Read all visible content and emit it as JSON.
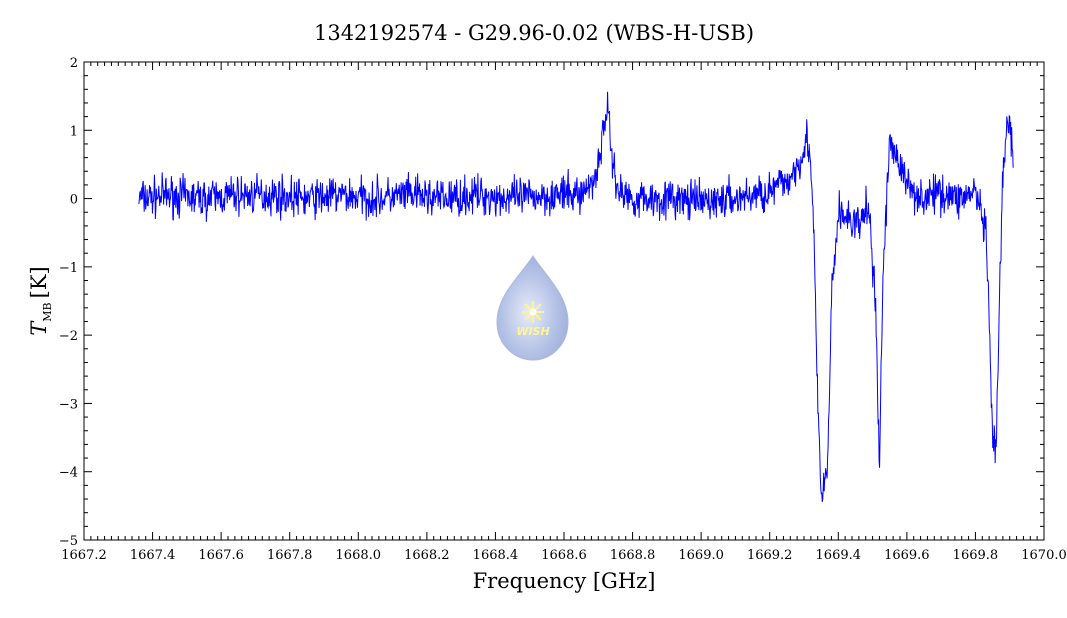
{
  "chart_data": {
    "type": "line",
    "title": "1342192574 - G29.96-0.02 (WBS-H-USB)",
    "xlabel": "Frequency [GHz]",
    "ylabel_main": "T",
    "ylabel_sub": "MB",
    "ylabel_unit": "[K]",
    "xlim": [
      1667.2,
      1670.0
    ],
    "ylim": [
      -5,
      2
    ],
    "xticks": [
      1667.2,
      1667.4,
      1667.6,
      1667.8,
      1668.0,
      1668.2,
      1668.4,
      1668.6,
      1668.8,
      1669.0,
      1669.2,
      1669.4,
      1669.6,
      1669.8,
      1670.0
    ],
    "xtick_labels": [
      "1667.2",
      "1667.4",
      "1667.6",
      "1667.8",
      "1668.0",
      "1668.2",
      "1668.4",
      "1668.6",
      "1668.8",
      "1669.0",
      "1669.2",
      "1669.4",
      "1669.6",
      "1669.8",
      "1670.0"
    ],
    "yticks": [
      2,
      1,
      0,
      -1,
      -2,
      -3,
      -4,
      -5
    ],
    "ytick_labels": [
      "2",
      "1",
      "0",
      "−1",
      "−2",
      "−3",
      "−4",
      "−5"
    ],
    "grid": false,
    "line_color": "#0000ff",
    "series": [
      {
        "x": [
          1667.36,
          1667.45,
          1667.55,
          1667.65,
          1667.75,
          1667.85,
          1667.95,
          1668.05,
          1668.15,
          1668.25,
          1668.35,
          1668.45,
          1668.55,
          1668.62,
          1668.66,
          1668.69,
          1668.71,
          1668.725,
          1668.74,
          1668.76,
          1668.8,
          1668.9,
          1669.0,
          1669.1,
          1669.2,
          1669.26,
          1669.29,
          1669.31,
          1669.32,
          1669.33,
          1669.34,
          1669.35,
          1669.36,
          1669.37,
          1669.38,
          1669.4,
          1669.43,
          1669.46,
          1669.49,
          1669.51,
          1669.52,
          1669.53,
          1669.55,
          1669.6,
          1669.65,
          1669.7,
          1669.75,
          1669.8,
          1669.83,
          1669.84,
          1669.85,
          1669.86,
          1669.87,
          1669.88,
          1669.89,
          1669.9,
          1669.91
        ],
        "y": [
          0.0,
          0.05,
          0.0,
          0.05,
          0.05,
          0.0,
          0.05,
          0.0,
          0.05,
          0.0,
          0.05,
          0.0,
          0.05,
          0.05,
          0.1,
          0.3,
          0.8,
          1.4,
          0.6,
          0.1,
          0.0,
          0.0,
          -0.05,
          0.0,
          0.1,
          0.3,
          0.6,
          0.9,
          0.5,
          -0.8,
          -3.0,
          -4.4,
          -4.2,
          -3.8,
          -1.5,
          -0.2,
          -0.3,
          -0.4,
          -0.1,
          -1.8,
          -3.9,
          -1.2,
          0.9,
          0.2,
          0.0,
          0.1,
          0.0,
          0.1,
          -0.5,
          -1.8,
          -3.5,
          -3.8,
          -1.5,
          0.3,
          0.9,
          1.2,
          0.5
        ]
      }
    ],
    "logo_text": "WISH"
  }
}
